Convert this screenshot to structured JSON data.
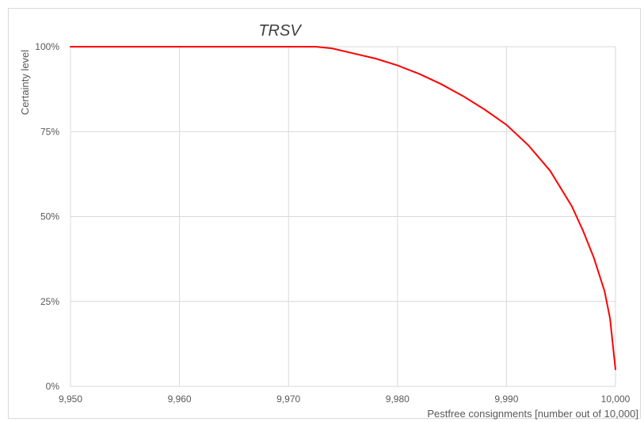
{
  "chart_data": {
    "type": "line",
    "title": "TRSV",
    "xlabel": "Pestfree consignments [number out of 10,000]",
    "ylabel": "Certainty level",
    "xlim": [
      9950,
      10000
    ],
    "ylim": [
      0,
      1
    ],
    "x_ticks": [
      9950,
      9960,
      9970,
      9980,
      9990,
      10000
    ],
    "x_tick_labels": [
      "9,950",
      "9,960",
      "9,970",
      "9,980",
      "9,990",
      "10,000"
    ],
    "y_ticks": [
      0,
      0.25,
      0.5,
      0.75,
      1
    ],
    "y_tick_labels": [
      "0%",
      "25%",
      "50%",
      "75%",
      "100%"
    ],
    "grid": true,
    "series": [
      {
        "color": "#ff0000",
        "x": [
          9950,
          9960,
          9970,
          9972.5,
          9974,
          9976,
          9978,
          9980,
          9982,
          9984,
          9986,
          9988,
          9990,
          9992,
          9994,
          9996,
          9997,
          9998,
          9999,
          9999.5,
          10000
        ],
        "y": [
          1.0,
          1.0,
          1.0,
          1.0,
          0.995,
          0.98,
          0.965,
          0.945,
          0.92,
          0.89,
          0.855,
          0.815,
          0.77,
          0.71,
          0.635,
          0.53,
          0.46,
          0.38,
          0.28,
          0.2,
          0.05
        ]
      }
    ]
  }
}
